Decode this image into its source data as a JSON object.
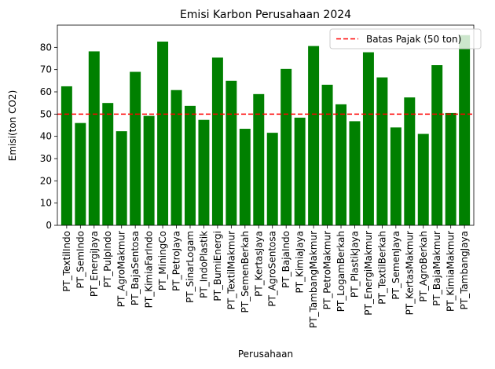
{
  "chart_data": {
    "type": "bar",
    "title": "Emisi Karbon Perusahaan 2024",
    "xlabel": "Perusahaan",
    "ylabel": "Emisi(ton CO2)",
    "ylim": [
      0,
      90
    ],
    "yticks": [
      0,
      10,
      20,
      30,
      40,
      50,
      60,
      70,
      80
    ],
    "bar_color": "#008000",
    "categories": [
      "PT_TextilIndo",
      "PT_SemIndo",
      "PT_EnergiJaya",
      "PT_PulpIndo",
      "PT_AgroMakmur",
      "PT_BajaSentosa",
      "PT_KimiaFarIndo",
      "PT_MiningCo",
      "PT_PetroJaya",
      "PT_SinarLogam",
      "PT_IndoPlastik",
      "PT_BumiEnergi",
      "PT_TextilMakmur",
      "PT_SemenBerkah",
      "PT_KertasJaya",
      "PT_AgroSentosa",
      "PT_BajaIndo",
      "PT_KimiaJaya",
      "PT_TambangMakmur",
      "PT_PetroMakmur",
      "PT_LogamBerkah",
      "PT_PlastikJaya",
      "PT_EnergiMakmur",
      "PT_TextilBerkah",
      "PT_SemenJaya",
      "PT_KertasMakmur",
      "PT_AgroBerkah",
      "PT_BajaMakmur",
      "PT_KimiaMakmur",
      "PT_TambangJaya"
    ],
    "values": [
      62.5,
      46.0,
      78.2,
      55.0,
      42.3,
      69.0,
      49.2,
      82.6,
      60.8,
      53.7,
      47.4,
      75.4,
      65.0,
      43.4,
      59.0,
      41.6,
      70.3,
      48.4,
      80.6,
      63.2,
      54.4,
      46.8,
      77.8,
      66.5,
      44.0,
      57.5,
      41.1,
      72.0,
      50.5,
      85.5
    ],
    "reference_line": {
      "value": 50,
      "label": "Batas Pajak (50 ton)",
      "color": "#ff0000",
      "style": "dashed"
    },
    "legend_position": "top-right",
    "grid": false
  }
}
